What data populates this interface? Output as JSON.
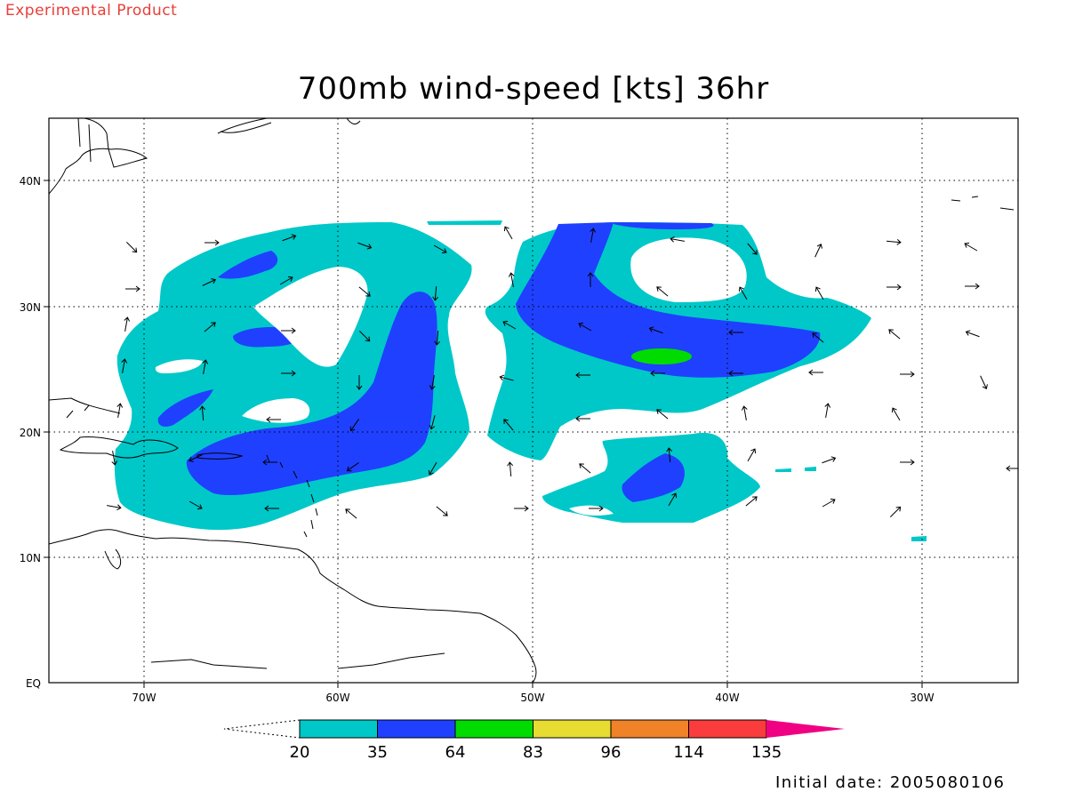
{
  "header": {
    "tag": "Experimental Product",
    "title": "700mb wind-speed [kts] 36hr"
  },
  "axes": {
    "lat_labels": [
      "40N",
      "30N",
      "20N",
      "10N",
      "EQ"
    ],
    "lon_labels": [
      "70W",
      "60W",
      "50W",
      "40W",
      "30W"
    ]
  },
  "colorbar": {
    "levels": [
      "20",
      "35",
      "64",
      "83",
      "96",
      "114",
      "135"
    ],
    "colors": [
      "#00c8c8",
      "#2040ff",
      "#00dc00",
      "#e6dc32",
      "#f08228",
      "#fa3c3c",
      "#f00082"
    ]
  },
  "footer": {
    "initial_date": "Initial date: 2005080106"
  },
  "chart_data": {
    "type": "heatmap",
    "title": "700mb wind-speed [kts] 36hr",
    "x_axis": {
      "labels": [
        "70W",
        "60W",
        "50W",
        "40W",
        "30W"
      ]
    },
    "y_axis": {
      "labels": [
        "40N",
        "30N",
        "20N",
        "10N",
        "EQ"
      ]
    },
    "grid": true,
    "contour_levels_kts": [
      20,
      35,
      64,
      83,
      96,
      114,
      135
    ],
    "colors": {
      "20": "#00c8c8",
      "35": "#2040ff",
      "64": "#00dc00",
      "83": "#e6dc32",
      "96": "#f08228",
      "114": "#fa3c3c",
      "135": "#f00082"
    }
  }
}
